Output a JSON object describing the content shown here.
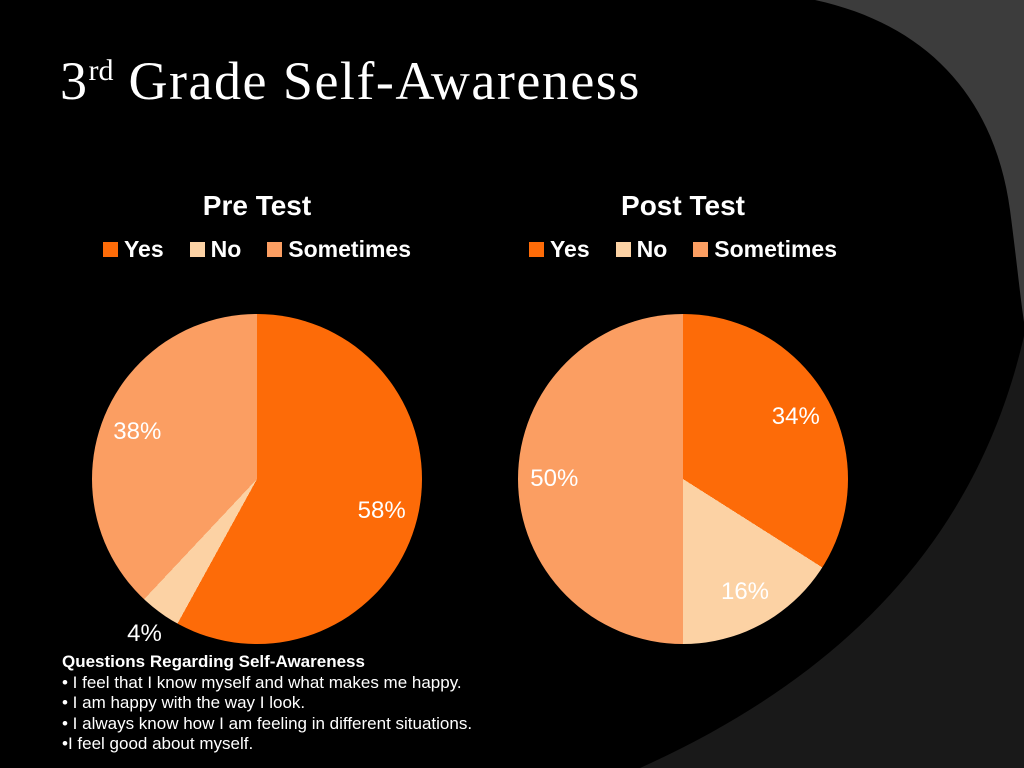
{
  "slide": {
    "title_prefix": "3",
    "title_superscript": "rd",
    "title_rest": " Grade Self-Awareness"
  },
  "colors": {
    "background": "#000000",
    "corner_shape": "#3C3C3C",
    "swoosh_shape": "#191919",
    "text": "#FFFFFF",
    "yes": "#FD6B08",
    "no": "#FCD2A4",
    "sometimes": "#FB9E62"
  },
  "chart_data": [
    {
      "type": "pie",
      "title": "Pre Test",
      "labels": [
        "Yes",
        "No",
        "Sometimes"
      ],
      "values": [
        58,
        4,
        38
      ],
      "value_labels": [
        "58%",
        "4%",
        "38%"
      ],
      "colors": [
        "#FD6B08",
        "#FCD2A4",
        "#FB9E62"
      ],
      "units": "percent",
      "legend_position": "top",
      "start_angle": "top",
      "direction": "clockwise"
    },
    {
      "type": "pie",
      "title": "Post Test",
      "labels": [
        "Yes",
        "No",
        "Sometimes"
      ],
      "values": [
        34,
        16,
        50
      ],
      "value_labels": [
        "34%",
        "16%",
        "50%"
      ],
      "colors": [
        "#FD6B08",
        "#FCD2A4",
        "#FB9E62"
      ],
      "units": "percent",
      "legend_position": "top",
      "start_angle": "top",
      "direction": "clockwise"
    }
  ],
  "notes": {
    "heading": "Questions Regarding Self-Awareness",
    "bullets": [
      "• I feel that I know myself and what makes me happy.",
      "• I am happy with the way I look.",
      "• I always know how I am feeling in different situations.",
      "•I feel good about myself."
    ]
  }
}
